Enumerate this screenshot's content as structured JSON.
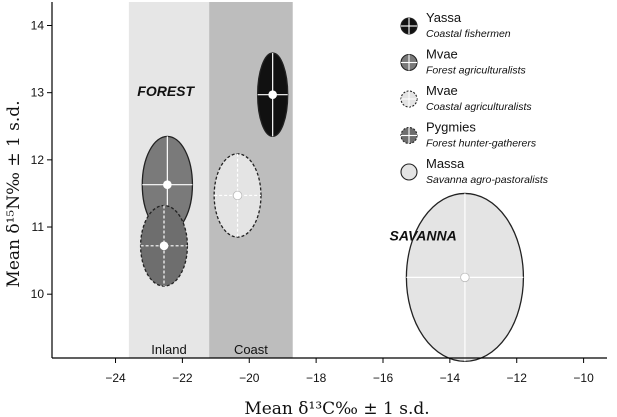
{
  "chart_data": {
    "type": "scatter",
    "xlabel": "Mean δ¹³C‰ ± 1 s.d.",
    "ylabel": "Mean δ¹⁵N‰ ± 1 s.d.",
    "xlim": [
      -25.9,
      -9.3
    ],
    "ylim": [
      9.05,
      14.35
    ],
    "xticks": [
      -24,
      -22,
      -20,
      -18,
      -16,
      -14,
      -12,
      -10
    ],
    "yticks": [
      10,
      11,
      12,
      13,
      14
    ],
    "grid": false,
    "legend_position": "top-right",
    "zones": [
      {
        "name": "Inland",
        "x_range": [
          -23.6,
          -21.2
        ],
        "color": "#e6e6e6"
      },
      {
        "name": "Coast",
        "x_range": [
          -21.2,
          -18.7
        ],
        "color": "#bdbdbd"
      }
    ],
    "region_labels": [
      {
        "text": "FOREST",
        "x": -22.5,
        "y": 12.95
      },
      {
        "text": "SAVANNA",
        "x": -14.8,
        "y": 10.8
      }
    ],
    "series": [
      {
        "name": "Yassa",
        "description": "Coastal fishermen",
        "x": -19.3,
        "y": 12.97,
        "x_sd": 0.45,
        "y_sd": 0.62,
        "style": "solid",
        "fill": "#111111",
        "cross": "#ffffff"
      },
      {
        "name": "Mvae",
        "description": "Forest agriculturalists",
        "x": -22.45,
        "y": 11.63,
        "x_sd": 0.75,
        "y_sd": 0.72,
        "style": "solid",
        "fill": "#7a7a7a",
        "cross": "#ffffff"
      },
      {
        "name": "Mvae",
        "description": "Coastal agriculturalists",
        "x": -20.35,
        "y": 11.47,
        "x_sd": 0.7,
        "y_sd": 0.62,
        "style": "dashed",
        "fill": "#e4e4e4",
        "cross": "#ffffff"
      },
      {
        "name": "Pygmies",
        "description": "Forest hunter-gatherers",
        "x": -22.55,
        "y": 10.72,
        "x_sd": 0.7,
        "y_sd": 0.6,
        "style": "dashed",
        "fill": "#6e6e6e",
        "cross": "#ffffff"
      },
      {
        "name": "Massa",
        "description": "Savanna agro-pastoralists",
        "x": -13.55,
        "y": 10.25,
        "x_sd": 1.75,
        "y_sd": 1.25,
        "style": "solid",
        "fill": "#e4e4e4",
        "cross": "#ffffff"
      }
    ]
  }
}
